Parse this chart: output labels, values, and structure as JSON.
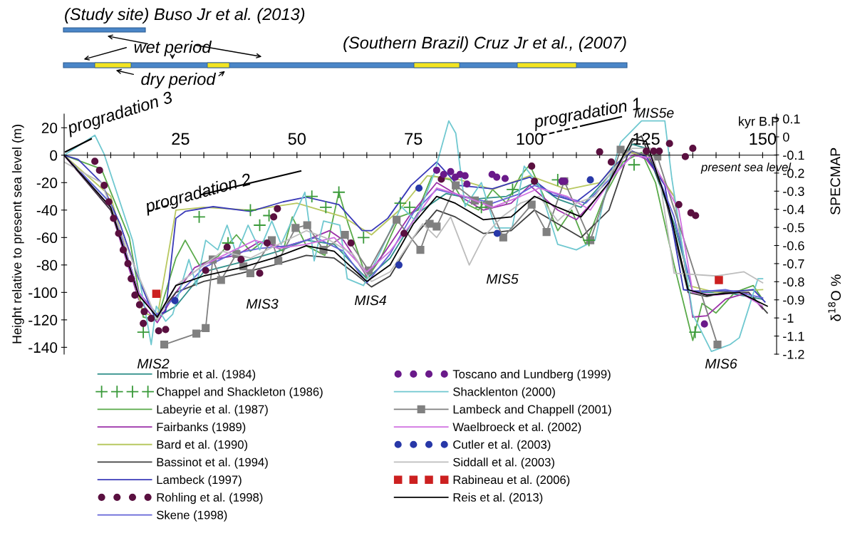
{
  "chart_data": {
    "type": "line",
    "xlabel": "kyr B.P",
    "ylabel": "Height relative to present sea level (m)",
    "y2label": "SPECMAP",
    "xlim": [
      0,
      153
    ],
    "ylim": [
      -145,
      30
    ],
    "y2lim": [
      -1.2,
      0.126
    ],
    "xticks": [
      {
        "value": 5,
        "label": null
      },
      {
        "value": 10,
        "label": null
      },
      {
        "value": 15,
        "label": null
      },
      {
        "value": 20,
        "label": null
      },
      25,
      {
        "value": 30,
        "label": null
      },
      {
        "value": 35,
        "label": null
      },
      {
        "value": 40,
        "label": null
      },
      {
        "value": 45,
        "label": null
      },
      50,
      {
        "value": 55,
        "label": null
      },
      {
        "value": 60,
        "label": null
      },
      {
        "value": 65,
        "label": null
      },
      {
        "value": 70,
        "label": null
      },
      75,
      {
        "value": 80,
        "label": null
      },
      {
        "value": 85,
        "label": null
      },
      {
        "value": 90,
        "label": null
      },
      {
        "value": 95,
        "label": null
      },
      100,
      {
        "value": 105,
        "label": null
      },
      {
        "value": 110,
        "label": null
      },
      {
        "value": 115,
        "label": null
      },
      {
        "value": 120,
        "label": null
      },
      125,
      {
        "value": 130,
        "label": null
      },
      {
        "value": 135,
        "label": null
      },
      {
        "value": 140,
        "label": null
      },
      {
        "value": 145,
        "label": null
      },
      150
    ],
    "yticks": [
      -140,
      -120,
      -100,
      -80,
      -60,
      -40,
      -20,
      0,
      20
    ],
    "y2ticks": [
      -1.2,
      -1.1,
      -1,
      -0.9,
      -0.8,
      -0.7,
      -0.6,
      -0.5,
      -0.4,
      -0.3,
      -0.2,
      -0.1,
      0,
      0.1
    ],
    "grid": false,
    "legend": "bottom",
    "annotations": [
      "(Study site) Buso Jr et al. (2013)",
      "wet period",
      "dry period",
      "(Southern Brazil) Cruz Jr et al., (2007)",
      "progradation 3",
      "progradation 2",
      "progradation 1",
      "MIS5e",
      "MIS2",
      "MIS3",
      "MIS4",
      "MIS5",
      "MIS6",
      "present sea level",
      "δ$^{18}$O %"
    ],
    "series": [
      {
        "name": "Imbrie et al. (1984)",
        "color": "#2f8f8a",
        "x": [
          0,
          10,
          16,
          20,
          24,
          30,
          38,
          46,
          52,
          58,
          65,
          70,
          76,
          82,
          88,
          95,
          101,
          106,
          111,
          117,
          122,
          125,
          131,
          135,
          142,
          150
        ],
        "values": [
          0,
          -35,
          -100,
          -118,
          -110,
          -85,
          -78,
          -70,
          -62,
          -65,
          -90,
          -75,
          -42,
          -28,
          -32,
          -30,
          -20,
          -32,
          -38,
          -15,
          8,
          5,
          -50,
          -100,
          -100,
          -105
        ]
      },
      {
        "name": "Chappel and Shackleton (1986)",
        "type": "scatter",
        "marker": "cross",
        "color": "#3a9a3a",
        "x": [
          17,
          29,
          35.2,
          40,
          42,
          44,
          53.2,
          56.2,
          59,
          64.3,
          72.2,
          74.2,
          89.6,
          96.3,
          106,
          112.7,
          122.4,
          135.5
        ],
        "values": [
          -129,
          -45,
          -64,
          -40,
          -51,
          -44,
          -30,
          -38,
          -27,
          -60,
          -35,
          -38,
          -38,
          -25,
          -18,
          -62,
          -7,
          -129
        ]
      },
      {
        "name": "Labeyrie et al. (1987)",
        "color": "#5aaa4a",
        "x": [
          0,
          8,
          14,
          17,
          20,
          24,
          26,
          29,
          33,
          37,
          40,
          43,
          47,
          49,
          52,
          56,
          59,
          61,
          65,
          68,
          72,
          76,
          79,
          83,
          86,
          89,
          92,
          95,
          98,
          100,
          103,
          106,
          109,
          112,
          116,
          120,
          124,
          127,
          131,
          135,
          137,
          140,
          144,
          148,
          150
        ],
        "values": [
          0,
          -10,
          -60,
          -118,
          -120,
          -75,
          -62,
          -80,
          -74,
          -58,
          -70,
          -62,
          -70,
          -45,
          -66,
          -73,
          -27,
          -50,
          -90,
          -75,
          -45,
          -40,
          -15,
          -18,
          -35,
          -40,
          -25,
          -35,
          -15,
          -7,
          -30,
          -55,
          -40,
          -65,
          -30,
          -5,
          2,
          -20,
          -80,
          -135,
          -108,
          -115,
          -100,
          -95,
          -105
        ]
      },
      {
        "name": "Fairbanks (1989)",
        "color": "#9b30a8",
        "x": [
          0,
          10,
          16,
          20,
          24,
          28,
          32,
          37,
          42,
          47,
          52,
          57,
          60,
          65,
          69,
          74,
          80,
          84,
          90,
          96,
          100,
          106,
          110,
          116,
          121,
          125,
          131,
          135,
          138,
          142,
          147,
          150
        ],
        "values": [
          0,
          -40,
          -105,
          -122,
          -100,
          -82,
          -76,
          -73,
          -63,
          -67,
          -62,
          -55,
          -62,
          -88,
          -70,
          -45,
          -20,
          -28,
          -40,
          -35,
          -22,
          -40,
          -47,
          -25,
          3,
          -3,
          -30,
          -118,
          -117,
          -105,
          -100,
          -112
        ]
      },
      {
        "name": "Bard et al. (1990)",
        "color": "#b8c860",
        "x": [
          0,
          10,
          17,
          20,
          24,
          30,
          40,
          50,
          60,
          66,
          72,
          78,
          85,
          92,
          100,
          108,
          115,
          121,
          125,
          131,
          134,
          140,
          150
        ],
        "values": [
          0,
          -30,
          -115,
          -118,
          -40,
          -38,
          -40,
          -35,
          -45,
          -58,
          -40,
          -15,
          -18,
          -25,
          -15,
          -25,
          -20,
          2,
          0,
          -30,
          -95,
          -100,
          -98
        ]
      },
      {
        "name": "Bassinot et al. (1994)",
        "color": "#404040",
        "x": [
          0,
          10,
          16,
          20,
          24,
          30,
          38,
          45,
          52,
          58,
          62,
          66,
          70,
          75,
          80,
          84,
          90,
          96,
          101,
          106,
          111,
          117,
          122,
          124,
          129,
          134,
          138,
          142,
          147,
          151
        ],
        "values": [
          0,
          -40,
          -100,
          -117,
          -100,
          -92,
          -86,
          -80,
          -73,
          -75,
          -85,
          -96,
          -88,
          -60,
          -40,
          -45,
          -57,
          -55,
          -40,
          -50,
          -60,
          -40,
          10,
          14,
          -30,
          -100,
          -103,
          -100,
          -100,
          -115
        ]
      },
      {
        "name": "Lambeck (1997)",
        "color": "#3a3ab8",
        "x": [
          0,
          3,
          8,
          12,
          16,
          19.3,
          21.8,
          24,
          26,
          32,
          40,
          47,
          52,
          59,
          64,
          66,
          69.5,
          74.5,
          80,
          84.6,
          92,
          100,
          105,
          110,
          114.6,
          118,
          122,
          125,
          129,
          133,
          135,
          145,
          148,
          150.5
        ],
        "values": [
          0,
          -3,
          -20,
          -50,
          -90,
          -117,
          -114,
          -46,
          -41,
          -37.5,
          -41,
          -34,
          -30.6,
          -36,
          -55,
          -55,
          -46,
          -22,
          -5,
          -22,
          -24.5,
          -16,
          -29,
          -34,
          -22,
          -8,
          3,
          -1,
          -22,
          -98,
          -99,
          -99,
          -98,
          -107
        ]
      },
      {
        "name": "Rohling et al. (1998)",
        "type": "scatter",
        "marker": "circle",
        "color": "#5a1040",
        "x": [
          6.6,
          7.6,
          8.6,
          9.6,
          10.6,
          11.7,
          12.7,
          13.7,
          14.4,
          15.2,
          16.2,
          17.2,
          18.7,
          20.3,
          21.8,
          17,
          30.4,
          35,
          38,
          42,
          43.6,
          45,
          45.8,
          61.6,
          73,
          81,
          100.4,
          101,
          115,
          117.5,
          125,
          126.6,
          127.8,
          130,
          133.4,
          135,
          132,
          134.6,
          135.6
        ],
        "values": [
          -4.5,
          -11,
          -22,
          -34,
          -46,
          -57,
          -69,
          -79,
          -90,
          -102,
          -109,
          -114,
          -119,
          -128,
          -127,
          -122.6,
          -84,
          -67,
          -76,
          -86,
          -64,
          -45,
          -39,
          -64,
          -57,
          -17.5,
          -8,
          -19,
          2.4,
          -5,
          3,
          3,
          3,
          8.5,
          -1,
          5,
          -36,
          -42,
          -44
        ]
      },
      {
        "name": "Skene (1998)",
        "color": "#6464d8",
        "x": [
          0,
          10,
          16,
          20,
          24,
          30,
          36,
          42,
          48,
          54,
          60,
          65,
          70,
          75,
          80,
          86,
          92,
          98,
          101,
          107,
          112,
          117,
          122,
          126,
          131,
          135,
          142,
          150
        ],
        "values": [
          0,
          -35,
          -100,
          -116,
          -103,
          -82,
          -72,
          -68,
          -66,
          -60,
          -70,
          -93,
          -72,
          -42,
          -25,
          -30,
          -35,
          -28,
          -22,
          -30,
          -35,
          -18,
          0,
          -2,
          -45,
          -100,
          -98,
          -104
        ]
      },
      {
        "name": "Toscano and Lundberg (1999)",
        "type": "scatter",
        "marker": "circle",
        "color": "#6a1a8a",
        "x": [
          80,
          81.5,
          83,
          84,
          85,
          86.1,
          86.5,
          91.9,
          92.9,
          94.7,
          106.9,
          107.5,
          137.5
        ],
        "values": [
          -11,
          -14,
          -12,
          -16,
          -14,
          -15,
          -21,
          -14,
          -16,
          -17,
          -19,
          -19,
          -123
        ]
      },
      {
        "name": "Shacklenton (2000)",
        "color": "#70c8d0",
        "x": [
          0,
          6.6,
          8.6,
          14.7,
          18.7,
          19.8,
          21.8,
          23.3,
          26.8,
          28.4,
          30.4,
          33,
          35,
          37,
          39.5,
          42,
          44.6,
          46.6,
          51.7,
          53.7,
          55.7,
          59.2,
          60.8,
          64.3,
          67.7,
          72.4,
          75.5,
          79.5,
          82.6,
          84.1,
          86.1,
          89.6,
          92.6,
          96.2,
          98.8,
          102,
          106,
          110,
          114,
          116,
          119.5,
          124,
          129,
          130.5,
          135,
          139,
          143,
          145,
          149,
          150
        ],
        "values": [
          0,
          14.6,
          0.7,
          -62,
          -138,
          -110,
          -121,
          -116,
          -76,
          -95,
          -62,
          -69,
          -51,
          -72,
          -51,
          -69,
          -48,
          -65,
          -27,
          -77,
          -48,
          -51,
          -90,
          -95,
          -72,
          -37.5,
          -48,
          -13,
          25,
          16,
          -37.5,
          -20,
          -53,
          -53,
          -8,
          -22,
          -65,
          -69,
          -62,
          -30.6,
          9.4,
          25,
          25,
          -17,
          -116,
          -143,
          -138,
          -133,
          -90,
          -90
        ]
      },
      {
        "name": "Lambeck and Chappell (2001)",
        "marker": "square",
        "color": "#808080",
        "x": [
          21.5,
          28.4,
          30.4,
          31.9,
          33.7,
          37,
          38.5,
          40,
          44.6,
          46,
          49.7,
          52.2,
          55.7,
          60.3,
          65.4,
          71.4,
          76.5,
          78.5,
          80,
          84.1,
          88.2,
          91.2,
          94.3,
          100.4,
          103.6,
          107.4,
          113,
          119.5,
          127.4,
          140.3
        ],
        "values": [
          -138,
          -130,
          -126,
          -76,
          -91,
          -72,
          -81,
          -86,
          -62,
          -77,
          -53,
          -51,
          -69,
          -58,
          -84,
          -47,
          -69,
          -50,
          -52,
          -22,
          -33,
          -36,
          -60,
          -36,
          -56,
          -19,
          -62,
          4,
          -1,
          -138
        ]
      },
      {
        "name": "Waelbroeck et al. (2002)",
        "color": "#d070e0",
        "x": [
          0,
          10,
          16,
          20,
          24,
          30,
          36,
          41,
          46,
          52,
          58,
          65,
          70,
          75,
          80,
          86,
          92,
          98,
          102,
          108,
          113,
          118,
          122,
          126,
          132,
          135,
          140,
          145,
          150
        ],
        "values": [
          0,
          -38,
          -100,
          -118,
          -95,
          -80,
          -70,
          -62,
          -68,
          -65,
          -60,
          -85,
          -70,
          -48,
          -24,
          -30,
          -38,
          -30,
          -24,
          -30,
          -40,
          -15,
          0,
          -2,
          -40,
          -100,
          -102,
          -100,
          -110
        ]
      },
      {
        "name": "Cutler et al. (2003)",
        "type": "scatter",
        "marker": "circle",
        "color": "#2838a8",
        "x": [
          23.8,
          71.9,
          76.2,
          93,
          113
        ],
        "values": [
          -106,
          -80,
          -24,
          -57,
          -18
        ]
      },
      {
        "name": "Siddall et al. (2003)",
        "color": "#bdbdbd",
        "x": [
          0,
          8,
          15,
          20,
          24,
          28,
          34,
          40,
          46,
          52,
          56,
          62,
          66,
          70,
          73,
          77,
          80,
          83,
          87,
          90,
          94,
          98,
          102,
          106,
          110,
          114,
          118,
          122,
          126,
          128,
          131,
          140,
          146,
          150
        ],
        "values": [
          -5,
          -20,
          -80,
          -120,
          -95,
          -85,
          -70,
          -75,
          -65,
          -55,
          -60,
          -72,
          -92,
          -85,
          -70,
          -50,
          -60,
          -45,
          -80,
          -60,
          -45,
          -35,
          -30,
          -48,
          -35,
          -30,
          -10,
          5,
          5,
          -20,
          -86,
          -88,
          -85,
          -93
        ]
      },
      {
        "name": "Rabineau et al. (2006)",
        "type": "scatter",
        "marker": "square",
        "color": "#cc2020",
        "x": [
          19.8,
          140.6
        ],
        "values": [
          -101,
          -91
        ]
      },
      {
        "name": "Reis et al. (2013)",
        "color": "#000000",
        "x": [
          0,
          10,
          16,
          20,
          24,
          30,
          38,
          45,
          52,
          58,
          65,
          70,
          75,
          80,
          84,
          90,
          96,
          101,
          106,
          111,
          117,
          122,
          125,
          130,
          134,
          138,
          145,
          151
        ],
        "values": [
          0,
          -38,
          -102,
          -118,
          -95,
          -88,
          -82,
          -75,
          -66,
          -70,
          -92,
          -80,
          -50,
          -30,
          -35,
          -47,
          -45,
          -30,
          -38,
          -45,
          -20,
          12,
          10,
          -40,
          -98,
          -102,
          -100,
          -110
        ]
      }
    ]
  }
}
